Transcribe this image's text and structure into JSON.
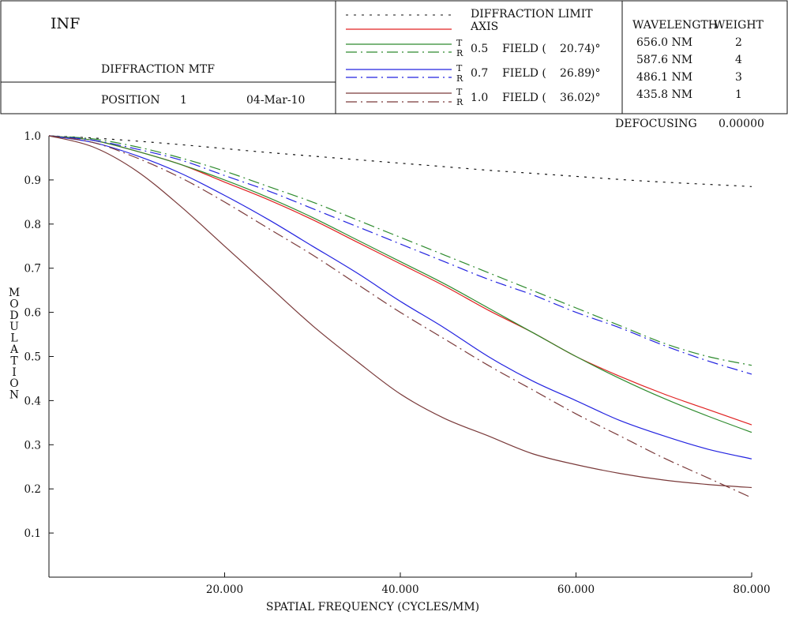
{
  "header": {
    "title": "INF",
    "subtitle": "DIFFRACTION MTF",
    "position_label": "POSITION",
    "position_value": "1",
    "date": "04-Mar-10",
    "legend": {
      "diffraction_limit": "DIFFRACTION LIMIT",
      "axis": "AXIS",
      "t_mark": "T",
      "r_mark": "R",
      "fields": [
        {
          "value": "0.5",
          "label": "FIELD (",
          "angle": "20.74",
          "unit": ")°",
          "color": "#2e8b2e"
        },
        {
          "value": "0.7",
          "label": "FIELD (",
          "angle": "26.89",
          "unit": ")°",
          "color": "#2323e0"
        },
        {
          "value": "1.0",
          "label": "FIELD (",
          "angle": "36.02",
          "unit": ")°",
          "color": "#7a3a3a"
        }
      ]
    },
    "wavelength_header": "WAVELENGTH",
    "weight_header": "WEIGHT",
    "wavelengths": [
      {
        "wl": "656.0 NM",
        "weight": "2"
      },
      {
        "wl": "587.6 NM",
        "weight": "4"
      },
      {
        "wl": "486.1 NM",
        "weight": "3"
      },
      {
        "wl": "435.8 NM",
        "weight": "1"
      }
    ],
    "defocusing_label": "DEFOCUSING",
    "defocusing_value": "0.00000"
  },
  "chart_data": {
    "type": "line",
    "xlabel": "SPATIAL FREQUENCY (CYCLES/MM)",
    "ylabel": "MODULATION",
    "xlim": [
      0,
      80
    ],
    "ylim": [
      0,
      1.0
    ],
    "x_ticks": [
      "20.000",
      "40.000",
      "60.000",
      "80.000"
    ],
    "y_ticks": [
      "0.1",
      "0.2",
      "0.3",
      "0.4",
      "0.5",
      "0.6",
      "0.7",
      "0.8",
      "0.9",
      "1.0"
    ],
    "x": [
      0,
      5,
      10,
      15,
      20,
      25,
      30,
      35,
      40,
      45,
      50,
      55,
      60,
      65,
      70,
      75,
      80
    ],
    "series": [
      {
        "name": "DIFFRACTION LIMIT",
        "color": "#111111",
        "dash": "dotted",
        "values": [
          1.0,
          0.995,
          0.988,
          0.98,
          0.971,
          0.962,
          0.954,
          0.946,
          0.938,
          0.93,
          0.922,
          0.915,
          0.908,
          0.901,
          0.895,
          0.89,
          0.885
        ]
      },
      {
        "name": "AXIS",
        "color": "#e02020",
        "dash": "solid",
        "values": [
          1.0,
          0.99,
          0.965,
          0.935,
          0.895,
          0.855,
          0.81,
          0.76,
          0.71,
          0.66,
          0.605,
          0.555,
          0.5,
          0.455,
          0.415,
          0.38,
          0.345
        ]
      },
      {
        "name": "0.5 FIELD T",
        "color": "#2e8b2e",
        "dash": "solid",
        "values": [
          1.0,
          0.99,
          0.965,
          0.935,
          0.9,
          0.86,
          0.815,
          0.765,
          0.715,
          0.665,
          0.61,
          0.555,
          0.5,
          0.45,
          0.405,
          0.365,
          0.328
        ]
      },
      {
        "name": "0.5 FIELD R",
        "color": "#2e8b2e",
        "dash": "dashdot",
        "values": [
          1.0,
          0.993,
          0.975,
          0.95,
          0.92,
          0.885,
          0.85,
          0.81,
          0.77,
          0.73,
          0.69,
          0.65,
          0.61,
          0.57,
          0.53,
          0.5,
          0.48
        ]
      },
      {
        "name": "0.7 FIELD T",
        "color": "#2323e0",
        "dash": "solid",
        "values": [
          1.0,
          0.985,
          0.955,
          0.915,
          0.865,
          0.81,
          0.75,
          0.69,
          0.625,
          0.565,
          0.5,
          0.445,
          0.4,
          0.355,
          0.32,
          0.29,
          0.268
        ]
      },
      {
        "name": "0.7 FIELD R",
        "color": "#2323e0",
        "dash": "dashdot",
        "values": [
          1.0,
          0.99,
          0.97,
          0.945,
          0.91,
          0.875,
          0.835,
          0.795,
          0.755,
          0.715,
          0.675,
          0.64,
          0.6,
          0.565,
          0.525,
          0.49,
          0.46
        ]
      },
      {
        "name": "1.0 FIELD T",
        "color": "#7a3a3a",
        "dash": "solid",
        "values": [
          1.0,
          0.975,
          0.92,
          0.84,
          0.75,
          0.66,
          0.57,
          0.49,
          0.415,
          0.36,
          0.32,
          0.28,
          0.255,
          0.235,
          0.22,
          0.21,
          0.203
        ]
      },
      {
        "name": "1.0 FIELD R",
        "color": "#7a3a3a",
        "dash": "dashdot",
        "values": [
          1.0,
          0.985,
          0.95,
          0.905,
          0.85,
          0.79,
          0.73,
          0.665,
          0.6,
          0.54,
          0.48,
          0.425,
          0.37,
          0.32,
          0.27,
          0.225,
          0.18
        ]
      }
    ]
  }
}
